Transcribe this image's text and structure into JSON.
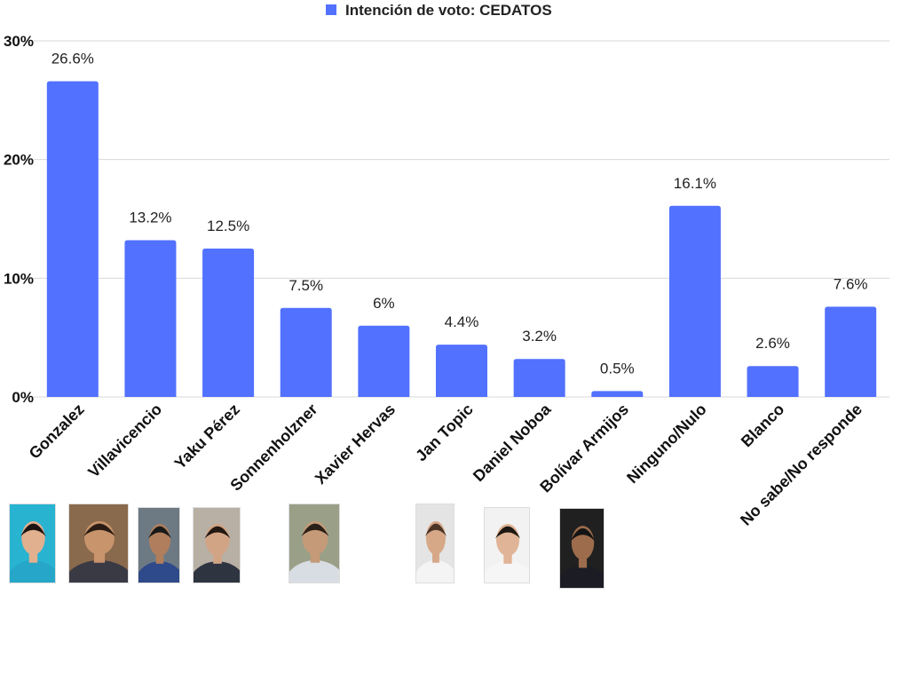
{
  "chart_data": {
    "type": "bar",
    "categories": [
      "Gonzalez",
      "Villavicencio",
      "Yaku Pérez",
      "Sonnenholzner",
      "Xavier Hervas",
      "Jan Topic",
      "Daniel Noboa",
      "Bolívar Armijos",
      "Ninguno/Nulo",
      "Blanco",
      "No sabe/No responde"
    ],
    "series": [
      {
        "name": "Intención de voto: CEDATOS",
        "values": [
          26.6,
          13.2,
          12.5,
          7.5,
          6,
          4.4,
          3.2,
          0.5,
          16.1,
          2.6,
          7.6
        ],
        "labels": [
          "26.6%",
          "13.2%",
          "12.5%",
          "7.5%",
          "6%",
          "4.4%",
          "3.2%",
          "0.5%",
          "16.1%",
          "2.6%",
          "7.6%"
        ]
      }
    ],
    "yticks": [
      {
        "value": 0,
        "label": "0%"
      },
      {
        "value": 10,
        "label": "10%"
      },
      {
        "value": 20,
        "label": "20%"
      },
      {
        "value": 30,
        "label": "30%"
      }
    ],
    "ylim": [
      0,
      30
    ],
    "legend_position": "top-center",
    "grid": true,
    "bar_color": "#5271ff",
    "grid_color": "#d9d9d9"
  },
  "photos": [
    {
      "name": "gonzalez-photo",
      "bg": "#28b3d1",
      "skin": "#e0b08f",
      "hair": "#1c1410",
      "clothes": "#26a6c8"
    },
    {
      "name": "villavicencio-photo",
      "bg": "#8a6a4c",
      "skin": "#c8946c",
      "hair": "#2a1c14",
      "clothes": "#3a3a44"
    },
    {
      "name": "yaku-perez-photo",
      "bg": "#6d7a84",
      "skin": "#b07e5c",
      "hair": "#181818",
      "clothes": "#2f4a8a"
    },
    {
      "name": "sonnenholzner-photo",
      "bg": "#b8b0a4",
      "skin": "#d2a486",
      "hair": "#231812",
      "clothes": "#2e3440"
    },
    {
      "name": "xavier-hervas-photo",
      "bg": "#9aa088",
      "skin": "#c49a78",
      "hair": "#2a2018",
      "clothes": "#d8dde4"
    },
    {
      "name": "jan-topic-photo",
      "bg": "#e4e4e4",
      "skin": "#d6a888",
      "hair": "#4a3426",
      "clothes": "#f4f4f4"
    },
    {
      "name": "daniel-noboa-photo",
      "bg": "#f2f2f2",
      "skin": "#e0b496",
      "hair": "#1e1812",
      "clothes": "#f6f6f6"
    },
    {
      "name": "bolivar-armijos-photo",
      "bg": "#202020",
      "skin": "#9c6c4c",
      "hair": "#141414",
      "clothes": "#1c1c24"
    }
  ]
}
